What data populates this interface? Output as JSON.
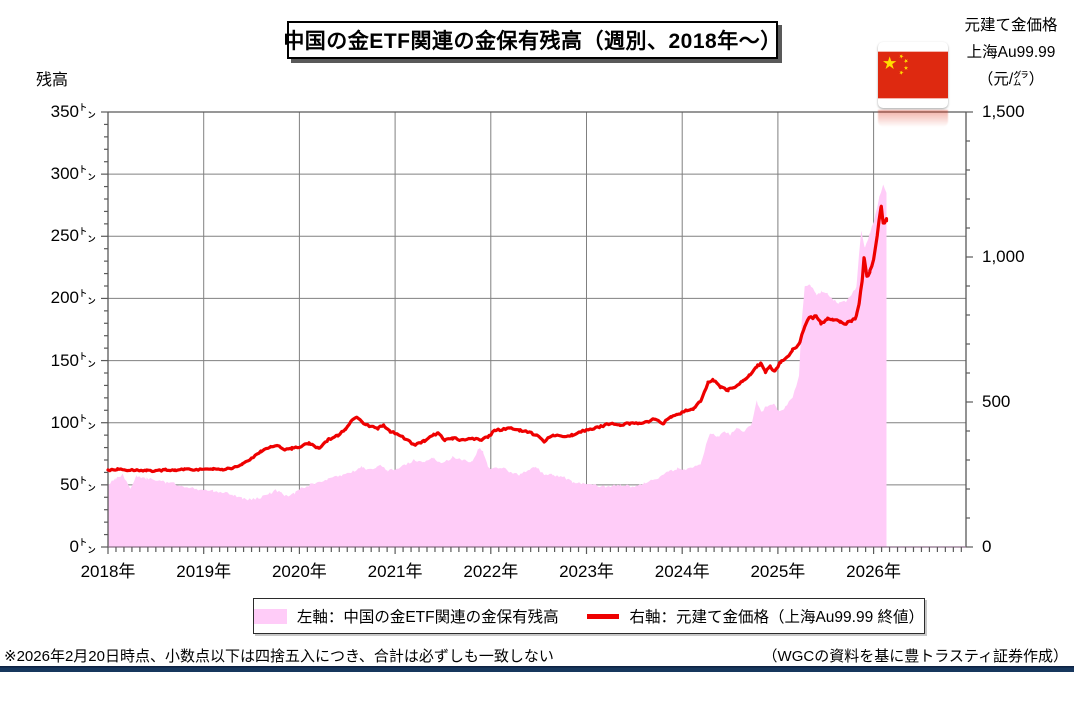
{
  "title": "中国の金ETF関連の金保有残高（週別、2018年～）",
  "left_axis": {
    "title": "残高",
    "tick_labels": [
      "350㌧",
      "300㌧",
      "250㌧",
      "200㌧",
      "150㌧",
      "100㌧",
      "50㌧",
      "0㌧"
    ],
    "tick_values": [
      350,
      300,
      250,
      200,
      150,
      100,
      50,
      0
    ],
    "minor_step": 10
  },
  "right_axis": {
    "title_lines": [
      "元建て金価格",
      "上海Au99.99",
      "（元/㌘）"
    ],
    "tick_labels": [
      "1,500",
      "1,000",
      "500",
      "0"
    ],
    "tick_values": [
      1500,
      1000,
      500,
      0
    ],
    "minor_step": 100
  },
  "x_axis": {
    "tick_labels": [
      "2018年",
      "2019年",
      "2020年",
      "2021年",
      "2022年",
      "2023年",
      "2024年",
      "2025年",
      "2026年"
    ],
    "tick_values": [
      2018,
      2019,
      2020,
      2021,
      2022,
      2023,
      2024,
      2025,
      2026
    ],
    "minor_ticks": "monthly"
  },
  "legend": {
    "area_label": "左軸：中国の金ETF関連の金保有残高",
    "line_label": "右軸：元建て金価格（上海Au99.99 終値）"
  },
  "footnote_left": "※2026年2月20日時点、小数点以下は四捨五入につき、合計は必ずしも一致しない",
  "footnote_right": "（WGCの資料を基に豊トラスティ証券作成）",
  "flag": "china-flag",
  "colors": {
    "area": "#FFCCF8",
    "line": "#EE0000",
    "grid": "#808080",
    "border": "#595959",
    "footer_rule": "#17375D",
    "flag_red": "#DE2910",
    "flag_yellow": "#FFDE00"
  },
  "chart_data": {
    "type": "area",
    "subtype": "combo area (left axis) + line (right axis), weekly",
    "x_range": [
      2018.0,
      2026.97
    ],
    "left_ylim": [
      0,
      350
    ],
    "right_ylim": [
      0,
      1500
    ],
    "grid": "on",
    "legend_position": "bottom",
    "series": [
      {
        "name": "左軸：中国の金ETF関連の金保有残高",
        "type": "area",
        "axis": "left",
        "unit": "トン",
        "points": [
          [
            2018.0,
            50
          ],
          [
            2018.08,
            55
          ],
          [
            2018.15,
            58.5
          ],
          [
            2018.23,
            47.5
          ],
          [
            2018.3,
            57
          ],
          [
            2018.4,
            55
          ],
          [
            2018.5,
            54
          ],
          [
            2018.6,
            52
          ],
          [
            2018.7,
            51
          ],
          [
            2018.8,
            48.5
          ],
          [
            2018.9,
            47
          ],
          [
            2019.0,
            46
          ],
          [
            2019.1,
            45
          ],
          [
            2019.2,
            44
          ],
          [
            2019.3,
            42
          ],
          [
            2019.4,
            39
          ],
          [
            2019.5,
            38
          ],
          [
            2019.6,
            40
          ],
          [
            2019.7,
            43.5
          ],
          [
            2019.75,
            46
          ],
          [
            2019.8,
            44
          ],
          [
            2019.85,
            40.5
          ],
          [
            2019.95,
            43
          ],
          [
            2020.0,
            47
          ],
          [
            2020.15,
            51
          ],
          [
            2020.3,
            55
          ],
          [
            2020.45,
            58
          ],
          [
            2020.55,
            60.5
          ],
          [
            2020.65,
            64.5
          ],
          [
            2020.7,
            62
          ],
          [
            2020.8,
            64
          ],
          [
            2020.85,
            66
          ],
          [
            2020.92,
            61
          ],
          [
            2021.0,
            63
          ],
          [
            2021.1,
            66
          ],
          [
            2021.2,
            70
          ],
          [
            2021.3,
            68.5
          ],
          [
            2021.4,
            71.5
          ],
          [
            2021.5,
            67
          ],
          [
            2021.6,
            72.5
          ],
          [
            2021.7,
            70
          ],
          [
            2021.8,
            68.5
          ],
          [
            2021.88,
            79.5
          ],
          [
            2021.92,
            76.5
          ],
          [
            2021.97,
            65
          ],
          [
            2022.0,
            62
          ],
          [
            2022.1,
            64.5
          ],
          [
            2022.2,
            60.5
          ],
          [
            2022.3,
            58
          ],
          [
            2022.4,
            62
          ],
          [
            2022.47,
            64.5
          ],
          [
            2022.55,
            59
          ],
          [
            2022.65,
            58
          ],
          [
            2022.75,
            56.5
          ],
          [
            2022.85,
            52.5
          ],
          [
            2022.95,
            51
          ],
          [
            2023.05,
            50
          ],
          [
            2023.2,
            48.5
          ],
          [
            2023.35,
            50
          ],
          [
            2023.5,
            48.5
          ],
          [
            2023.6,
            51
          ],
          [
            2023.75,
            55.5
          ],
          [
            2023.85,
            60.5
          ],
          [
            2023.95,
            63
          ],
          [
            2024.0,
            62
          ],
          [
            2024.1,
            63.5
          ],
          [
            2024.2,
            67.5
          ],
          [
            2024.26,
            86
          ],
          [
            2024.3,
            91.5
          ],
          [
            2024.37,
            88.5
          ],
          [
            2024.45,
            93
          ],
          [
            2024.5,
            90
          ],
          [
            2024.57,
            95.5
          ],
          [
            2024.65,
            93
          ],
          [
            2024.72,
            98
          ],
          [
            2024.78,
            117
          ],
          [
            2024.83,
            109
          ],
          [
            2024.88,
            113
          ],
          [
            2024.95,
            115.5
          ],
          [
            2025.0,
            110
          ],
          [
            2025.07,
            111.5
          ],
          [
            2025.15,
            120
          ],
          [
            2025.22,
            137
          ],
          [
            2025.25,
            183
          ],
          [
            2025.28,
            209.5
          ],
          [
            2025.34,
            211
          ],
          [
            2025.4,
            203
          ],
          [
            2025.46,
            205.5
          ],
          [
            2025.52,
            204
          ],
          [
            2025.58,
            199
          ],
          [
            2025.64,
            196
          ],
          [
            2025.71,
            197.5
          ],
          [
            2025.77,
            203
          ],
          [
            2025.82,
            209
          ],
          [
            2025.87,
            255
          ],
          [
            2025.91,
            240.5
          ],
          [
            2025.96,
            252
          ],
          [
            2026.01,
            264
          ],
          [
            2026.06,
            281
          ],
          [
            2026.1,
            292
          ],
          [
            2026.135,
            284
          ]
        ]
      },
      {
        "name": "右軸：元建て金価格（上海Au99.99 終値）",
        "type": "line",
        "axis": "right",
        "unit": "元/グラム",
        "points": [
          [
            2018.0,
            265
          ],
          [
            2018.1,
            268
          ],
          [
            2018.2,
            263
          ],
          [
            2018.3,
            266
          ],
          [
            2018.4,
            264
          ],
          [
            2018.5,
            262
          ],
          [
            2018.6,
            266
          ],
          [
            2018.7,
            264
          ],
          [
            2018.8,
            268
          ],
          [
            2018.9,
            266
          ],
          [
            2019.0,
            268
          ],
          [
            2019.1,
            270
          ],
          [
            2019.2,
            268
          ],
          [
            2019.3,
            272
          ],
          [
            2019.4,
            285
          ],
          [
            2019.5,
            305
          ],
          [
            2019.6,
            330
          ],
          [
            2019.7,
            345
          ],
          [
            2019.75,
            352
          ],
          [
            2019.8,
            345
          ],
          [
            2019.85,
            335
          ],
          [
            2019.92,
            340
          ],
          [
            2020.0,
            346
          ],
          [
            2020.1,
            357
          ],
          [
            2020.2,
            340
          ],
          [
            2020.3,
            370
          ],
          [
            2020.4,
            385
          ],
          [
            2020.48,
            405
          ],
          [
            2020.55,
            438
          ],
          [
            2020.6,
            449
          ],
          [
            2020.67,
            426
          ],
          [
            2020.75,
            415
          ],
          [
            2020.82,
            409
          ],
          [
            2020.88,
            421
          ],
          [
            2020.95,
            398
          ],
          [
            2021.0,
            392
          ],
          [
            2021.1,
            375
          ],
          [
            2021.2,
            352
          ],
          [
            2021.3,
            365
          ],
          [
            2021.4,
            386
          ],
          [
            2021.45,
            392
          ],
          [
            2021.52,
            369
          ],
          [
            2021.6,
            375
          ],
          [
            2021.7,
            369
          ],
          [
            2021.8,
            375
          ],
          [
            2021.9,
            369
          ],
          [
            2021.97,
            380
          ],
          [
            2022.05,
            403
          ],
          [
            2022.15,
            406
          ],
          [
            2022.2,
            409
          ],
          [
            2022.3,
            403
          ],
          [
            2022.4,
            396
          ],
          [
            2022.5,
            381
          ],
          [
            2022.55,
            363
          ],
          [
            2022.65,
            386
          ],
          [
            2022.75,
            380
          ],
          [
            2022.85,
            386
          ],
          [
            2022.95,
            398
          ],
          [
            2023.0,
            403
          ],
          [
            2023.15,
            415
          ],
          [
            2023.25,
            426
          ],
          [
            2023.35,
            421
          ],
          [
            2023.45,
            426
          ],
          [
            2023.55,
            426
          ],
          [
            2023.65,
            432
          ],
          [
            2023.72,
            444
          ],
          [
            2023.8,
            426
          ],
          [
            2023.88,
            450
          ],
          [
            2023.95,
            455
          ],
          [
            2024.0,
            465
          ],
          [
            2024.05,
            472
          ],
          [
            2024.12,
            478
          ],
          [
            2024.2,
            507
          ],
          [
            2024.27,
            565
          ],
          [
            2024.32,
            576
          ],
          [
            2024.4,
            553
          ],
          [
            2024.48,
            541
          ],
          [
            2024.55,
            553
          ],
          [
            2024.63,
            570
          ],
          [
            2024.7,
            593
          ],
          [
            2024.78,
            622
          ],
          [
            2024.82,
            633
          ],
          [
            2024.87,
            605
          ],
          [
            2024.92,
            622
          ],
          [
            2024.97,
            605
          ],
          [
            2025.03,
            639
          ],
          [
            2025.1,
            656
          ],
          [
            2025.15,
            679
          ],
          [
            2025.22,
            697
          ],
          [
            2025.28,
            760
          ],
          [
            2025.32,
            789
          ],
          [
            2025.4,
            794
          ],
          [
            2025.45,
            771
          ],
          [
            2025.52,
            789
          ],
          [
            2025.57,
            783
          ],
          [
            2025.65,
            777
          ],
          [
            2025.7,
            771
          ],
          [
            2025.77,
            777
          ],
          [
            2025.82,
            794
          ],
          [
            2025.85,
            841
          ],
          [
            2025.88,
            920
          ],
          [
            2025.9,
            1001
          ],
          [
            2025.93,
            931
          ],
          [
            2025.96,
            948
          ],
          [
            2026.0,
            990
          ],
          [
            2026.04,
            1082
          ],
          [
            2026.08,
            1179
          ],
          [
            2026.1,
            1117
          ],
          [
            2026.135,
            1128
          ]
        ]
      }
    ]
  }
}
